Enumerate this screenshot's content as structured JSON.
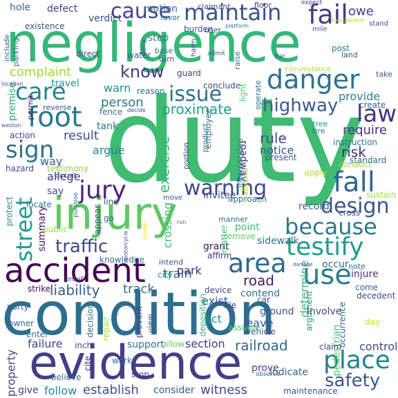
{
  "words": [
    {
      "text": "duty",
      "color": "#3fbb72"
    },
    {
      "text": "condition",
      "color": "#2d6e8e"
    },
    {
      "text": "negligence",
      "color": "#35b779"
    },
    {
      "text": "evidence",
      "color": "#433e85"
    },
    {
      "text": "injury",
      "color": "#5ec962"
    },
    {
      "text": "accident",
      "color": "#440154"
    },
    {
      "text": "because",
      "color": "#2a788e"
    },
    {
      "text": "danger",
      "color": "#2c728e"
    },
    {
      "text": "testify",
      "color": "#1f9e89"
    },
    {
      "text": "foot",
      "color": "#2a788e"
    },
    {
      "text": "maintain",
      "color": "#3b528b"
    },
    {
      "text": "fail",
      "color": "#443a83"
    },
    {
      "text": "area",
      "color": "#31688e"
    },
    {
      "text": "place",
      "color": "#26828e"
    },
    {
      "text": "fall",
      "color": "#31688e"
    },
    {
      "text": "warning",
      "color": "#3e4989"
    },
    {
      "text": "jury",
      "color": "#482677"
    },
    {
      "text": "use",
      "color": "#287d8e"
    },
    {
      "text": "design",
      "color": "#39568c"
    },
    {
      "text": "street",
      "color": "#1f9a8a"
    },
    {
      "text": "sign",
      "color": "#2c718e"
    },
    {
      "text": "law",
      "color": "#46327e"
    },
    {
      "text": "issue",
      "color": "#2b748e"
    },
    {
      "text": "cause",
      "color": "#414487"
    },
    {
      "text": "care",
      "color": "#25848e"
    },
    {
      "text": "safety",
      "color": "#39568c"
    },
    {
      "text": "traffic",
      "color": "#3f4889"
    },
    {
      "text": "highway",
      "color": "#365c8d"
    },
    {
      "text": "know",
      "color": "#453781"
    },
    {
      "text": "complaint",
      "color": "#a0da39"
    },
    {
      "text": "road",
      "color": "#481a6c"
    },
    {
      "text": "railroad",
      "color": "#31688e"
    },
    {
      "text": "establish",
      "color": "#3b528b"
    },
    {
      "text": "witness",
      "color": "#3e4a89"
    },
    {
      "text": "liability",
      "color": "#365d8d"
    },
    {
      "text": "risk",
      "color": "#472d7b"
    },
    {
      "text": "provide",
      "color": "#25858e"
    },
    {
      "text": "exercise",
      "color": "#35b779"
    },
    {
      "text": "proximate",
      "color": "#1fa287"
    },
    {
      "text": "person",
      "color": "#2a768e"
    },
    {
      "text": "result",
      "color": "#3d4e8a"
    },
    {
      "text": "rule",
      "color": "#3e4c8a"
    },
    {
      "text": "require",
      "color": "#46307e"
    },
    {
      "text": "train",
      "color": "#2d708e"
    },
    {
      "text": "failure",
      "color": "#404688"
    },
    {
      "text": "track",
      "color": "#2e6f8e"
    },
    {
      "text": "section",
      "color": "#453882"
    },
    {
      "text": "control",
      "color": "#3d4d8a"
    },
    {
      "text": "allege",
      "color": "#453581"
    },
    {
      "text": "argue",
      "color": "#26818e"
    },
    {
      "text": "warn",
      "color": "#228d8d"
    },
    {
      "text": "notice",
      "color": "#3a548c"
    },
    {
      "text": "motion",
      "color": "#2b748e"
    },
    {
      "text": "verdict",
      "color": "#3c4f8a"
    },
    {
      "text": "exist",
      "color": "#38588c"
    },
    {
      "text": "act",
      "color": "#20928c"
    },
    {
      "text": "leave",
      "color": "#3a548c"
    },
    {
      "text": "crossing",
      "color": "#3dbc74"
    },
    {
      "text": "roadway",
      "color": "#482878"
    },
    {
      "text": "determine",
      "color": "#37b878"
    },
    {
      "text": "sidewalk",
      "color": "#2e6e8e"
    },
    {
      "text": "support",
      "color": "#2b758e"
    },
    {
      "text": "property",
      "color": "#414287"
    },
    {
      "text": "summary",
      "color": "#481467"
    },
    {
      "text": "follow",
      "color": "#25858e"
    },
    {
      "text": "way",
      "color": "#38598c"
    },
    {
      "text": "say",
      "color": "#3c4f8a"
    },
    {
      "text": "travel",
      "color": "#1f958b"
    },
    {
      "text": "step",
      "color": "#2a788e"
    },
    {
      "text": "defect",
      "color": "#443983"
    },
    {
      "text": "invitee",
      "color": "#3e4c8a"
    },
    {
      "text": "park",
      "color": "#472c7a"
    },
    {
      "text": "tank",
      "color": "#2a778e"
    },
    {
      "text": "contend",
      "color": "#2e6f8e"
    },
    {
      "text": "pedestrian",
      "color": "#4ec36b"
    },
    {
      "text": "indicate",
      "color": "#35608d"
    },
    {
      "text": "employee",
      "color": "#2d718e"
    },
    {
      "text": "light",
      "color": "#5cc863"
    },
    {
      "text": "point",
      "color": "#40bd72"
    },
    {
      "text": "premise",
      "color": "#25ab82"
    },
    {
      "text": "knowledge",
      "color": "#2e6e8e"
    },
    {
      "text": "instruction",
      "color": "#2d718e"
    },
    {
      "text": "involve",
      "color": "#3e4a89"
    },
    {
      "text": "vehicle",
      "color": "#3a538b"
    },
    {
      "text": "record",
      "color": "#365d8d"
    },
    {
      "text": "prove",
      "color": "#424186"
    },
    {
      "text": "conduct",
      "color": "#a5db36"
    },
    {
      "text": "injure",
      "color": "#46327e"
    },
    {
      "text": "grant",
      "color": "#470d60"
    },
    {
      "text": "ground",
      "color": "#3b528b"
    },
    {
      "text": "city",
      "color": "#25848e"
    },
    {
      "text": "device",
      "color": "#3e4a89"
    },
    {
      "text": "occur",
      "color": "#31688e"
    },
    {
      "text": "assume",
      "color": "#3bbb75"
    },
    {
      "text": "present",
      "color": "#3a548c"
    },
    {
      "text": "standard",
      "color": "#2d708e"
    },
    {
      "text": "intersection",
      "color": "#24878e"
    },
    {
      "text": "come",
      "color": "#33638d"
    },
    {
      "text": "decedent",
      "color": "#3f4889"
    },
    {
      "text": "apply",
      "color": "#b5de2b"
    },
    {
      "text": "testimony",
      "color": "#8fd744"
    },
    {
      "text": "matter",
      "color": "#3aba76"
    },
    {
      "text": "claim",
      "color": "#433d84"
    },
    {
      "text": "inch",
      "color": "#404688"
    },
    {
      "text": "cite",
      "color": "#45337f"
    },
    {
      "text": "work",
      "color": "#2c738e"
    },
    {
      "text": "allow",
      "color": "#6ccd5a"
    },
    {
      "text": "consider",
      "color": "#365c8d"
    },
    {
      "text": "stop",
      "color": "#433e85"
    },
    {
      "text": "give",
      "color": "#404588"
    },
    {
      "text": "believe",
      "color": "#2e6f8e"
    },
    {
      "text": "strike",
      "color": "#440154"
    },
    {
      "text": "party",
      "color": "#33628d"
    },
    {
      "text": "owner",
      "color": "#31688e"
    },
    {
      "text": "enter",
      "color": "#2c738e"
    },
    {
      "text": "proof",
      "color": "#3f4889"
    },
    {
      "text": "maintenance",
      "color": "#3a548c"
    },
    {
      "text": "file",
      "color": "#414487"
    },
    {
      "text": "day",
      "color": "#c8e020"
    },
    {
      "text": "car",
      "color": "#3b528b"
    },
    {
      "text": "view",
      "color": "#365d8d"
    },
    {
      "text": "prevent",
      "color": "#404588"
    },
    {
      "text": "repair",
      "color": "#a2da37"
    },
    {
      "text": "decision",
      "color": "#2f6c8e"
    },
    {
      "text": "occurrence",
      "color": "#31688e"
    },
    {
      "text": "argument",
      "color": "#20928c"
    },
    {
      "text": "deposition",
      "color": "#32b67a"
    },
    {
      "text": "reason",
      "color": "#2c728e"
    },
    {
      "text": "guard",
      "color": "#3f4788"
    },
    {
      "text": "fence",
      "color": "#2d708e"
    },
    {
      "text": "reverse",
      "color": "#3b528b"
    },
    {
      "text": "permit",
      "color": "#470e61"
    },
    {
      "text": "action",
      "color": "#424086"
    },
    {
      "text": "hazard",
      "color": "#3f4889"
    },
    {
      "text": "locate",
      "color": "#2c738e"
    },
    {
      "text": "protect",
      "color": "#238a8d"
    },
    {
      "text": "public",
      "color": "#a2da37"
    },
    {
      "text": "appear",
      "color": "#3b528b"
    },
    {
      "text": "line",
      "color": "#3d4d8a"
    },
    {
      "text": "move",
      "color": "#3e4a89"
    },
    {
      "text": "go",
      "color": "#32658e"
    },
    {
      "text": "approach",
      "color": "#2e6e8e"
    },
    {
      "text": "manner",
      "color": "#2c718e"
    },
    {
      "text": "remove",
      "color": "#5ac864"
    },
    {
      "text": "affirm",
      "color": "#46307e"
    },
    {
      "text": "intend",
      "color": "#3e4a89"
    },
    {
      "text": "cross",
      "color": "#3a548c"
    },
    {
      "text": "sustain",
      "color": "#a8db34"
    },
    {
      "text": "note",
      "color": "#2f6b8e"
    },
    {
      "text": "create",
      "color": "#33638d"
    },
    {
      "text": "tree",
      "color": "#1f958b"
    },
    {
      "text": "tire",
      "color": "#2b748e"
    },
    {
      "text": "operate",
      "color": "#2c718e"
    },
    {
      "text": "product",
      "color": "#2d708e"
    },
    {
      "text": "portion",
      "color": "#3e4a89"
    },
    {
      "text": "conclude",
      "color": "#3f4788"
    },
    {
      "text": "direct",
      "color": "#3d4e8a"
    },
    {
      "text": "water",
      "color": "#35608d"
    },
    {
      "text": "burden",
      "color": "#3b528b"
    },
    {
      "text": "claimant",
      "color": "#3d4d8a"
    },
    {
      "text": "favor",
      "color": "#2e6f8e"
    },
    {
      "text": "floor",
      "color": "#46307e"
    },
    {
      "text": "base",
      "color": "#2f6c8e"
    },
    {
      "text": "turn",
      "color": "#424086"
    },
    {
      "text": "deny",
      "color": "#3b528b"
    },
    {
      "text": "raise",
      "color": "#2a778e"
    },
    {
      "text": "harm",
      "color": "#3f4889"
    },
    {
      "text": "user",
      "color": "#404688"
    },
    {
      "text": "post",
      "color": "#2a788e"
    },
    {
      "text": "land",
      "color": "#3e4c8a"
    },
    {
      "text": "owe",
      "color": "#433d84"
    },
    {
      "text": "mile",
      "color": "#365d8d"
    },
    {
      "text": "hole",
      "color": "#31688e"
    },
    {
      "text": "existence",
      "color": "#3d4e8a"
    },
    {
      "text": "include",
      "color": "#38598c"
    },
    {
      "text": "parking",
      "color": "#2c728e"
    },
    {
      "text": "circumstance",
      "color": "#addc30"
    },
    {
      "text": "take",
      "color": "#33638d"
    },
    {
      "text": "expect",
      "color": "#404588"
    },
    {
      "text": "circuit",
      "color": "#3f4788"
    },
    {
      "text": "bar",
      "color": "#3e4c8a"
    },
    {
      "text": "admit",
      "color": "#3b528b"
    },
    {
      "text": "platform",
      "color": "#2c728e"
    },
    {
      "text": "location",
      "color": "#3f4889"
    },
    {
      "text": "weston",
      "color": "#3a548c"
    },
    {
      "text": "decide",
      "color": "#3e4c8a"
    },
    {
      "text": "run",
      "color": "#33638d"
    },
    {
      "text": "show",
      "color": "#f1e51d"
    },
    {
      "text": "purpose",
      "color": "#2c718e"
    },
    {
      "text": "damage",
      "color": "#3e4a89"
    },
    {
      "text": "motorcycle",
      "color": "#3b528b"
    },
    {
      "text": "affidavit",
      "color": "#a5db36"
    },
    {
      "text": "observe",
      "color": "#38598c"
    },
    {
      "text": "stand",
      "color": "#3d4e8a"
    },
    {
      "text": "foreseeable",
      "color": "#b8de29"
    }
  ]
}
